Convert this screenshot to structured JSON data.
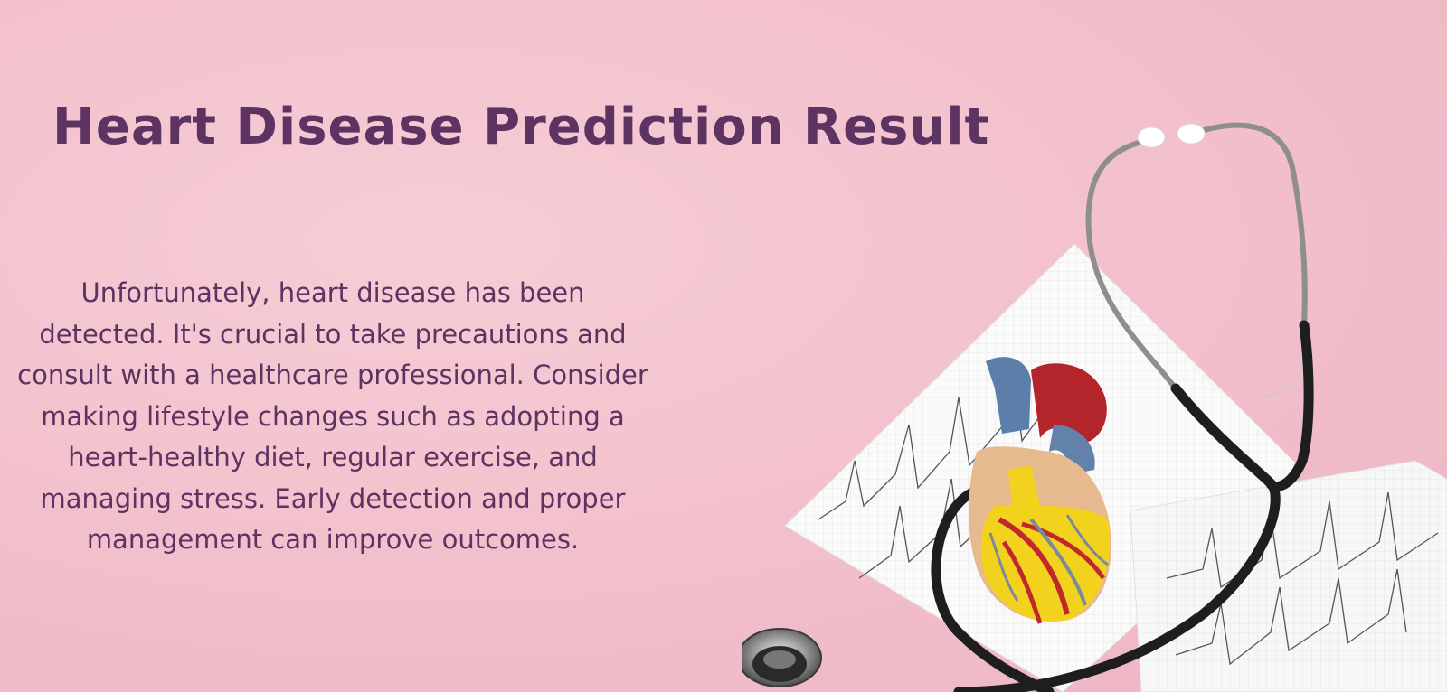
{
  "page": {
    "title": "Heart Disease Prediction Result",
    "message": "Unfortunately, heart disease has been detected. It's crucial to take precautions and consult with a healthcare professional. Consider making lifestyle changes such as adopting a heart-healthy diet, regular exercise, and managing stress. Early detection and proper management can improve outcomes."
  },
  "colors": {
    "background": "#f2bfcb",
    "text": "#5d3361"
  },
  "illustration": {
    "icons": [
      "stethoscope-icon",
      "heart-model-icon",
      "ecg-paper-icon"
    ]
  }
}
